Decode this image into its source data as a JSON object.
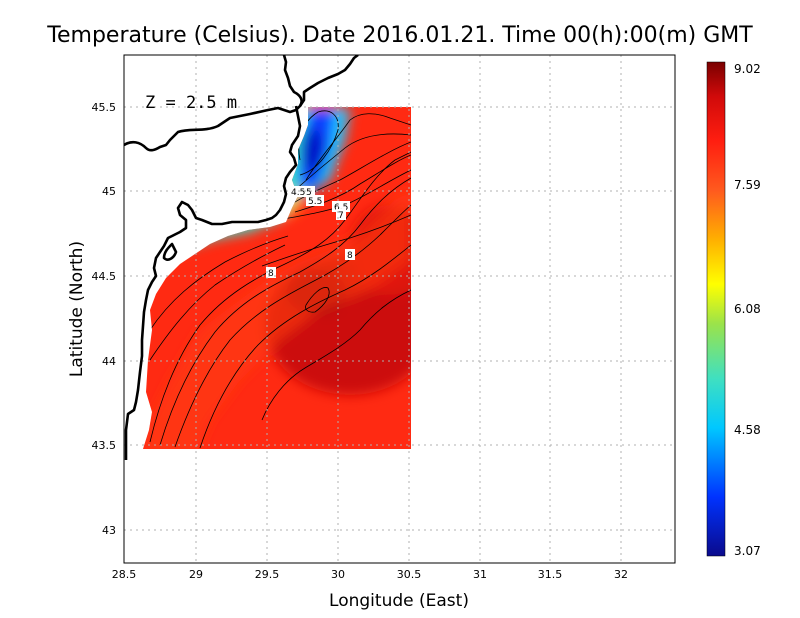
{
  "title": "Temperature (Celsius). Date 2016.01.21. Time 00(h):00(m) GMT",
  "depth_label": "Z = 2.5 m",
  "xlabel": "Longitude (East)",
  "ylabel": "Latitude (North)",
  "x_ticks": [
    "28.5",
    "29",
    "29.5",
    "30",
    "30.5",
    "31",
    "31.5",
    "32"
  ],
  "y_ticks": [
    "43",
    "43.5",
    "44",
    "44.5",
    "45",
    "45.5"
  ],
  "colorbar": {
    "min": 3.07,
    "max": 9.02,
    "tick_labels": [
      "3.07",
      "4.58",
      "6.08",
      "7.59",
      "9.02"
    ],
    "colors": [
      "#0a0a8c",
      "#0033ff",
      "#00c8ff",
      "#40e0c0",
      "#9be34a",
      "#ffff00",
      "#ffb000",
      "#ff5a1e",
      "#ff1e10",
      "#d10a0a",
      "#7a0000"
    ]
  },
  "contour_labels": [
    "4.5",
    "5",
    "5.5",
    "6.5",
    "7",
    "8",
    "8"
  ],
  "chart_data": {
    "type": "heatmap",
    "title": "Temperature (Celsius). Date 2016.01.21. Time 00(h):00(m) GMT",
    "xlabel": "Longitude (East)",
    "ylabel": "Latitude (North)",
    "xlim": [
      28.5,
      32.4
    ],
    "ylim": [
      42.8,
      45.8
    ],
    "value_range": [
      3.07,
      9.02
    ],
    "data_extent": {
      "lon": [
        28.62,
        30.53
      ],
      "lat": [
        43.48,
        45.49
      ]
    },
    "grid": true,
    "colorbar": "right"
  }
}
